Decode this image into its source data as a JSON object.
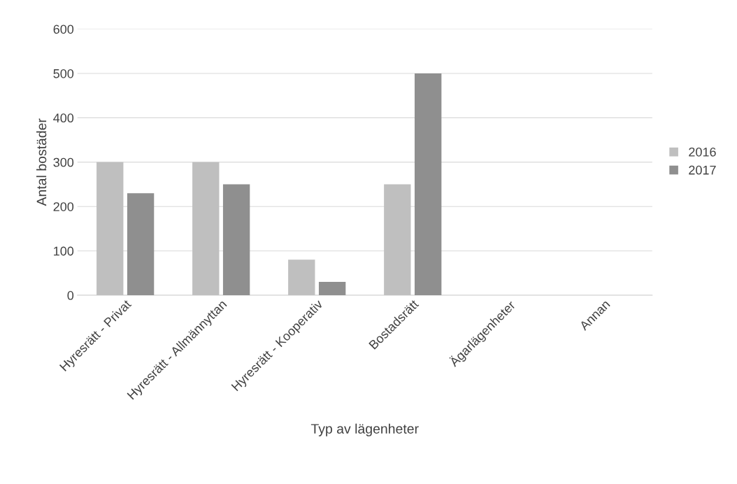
{
  "chart_data": {
    "type": "bar",
    "xlabel": "Typ av lägenheter",
    "ylabel": "Antal bostäder",
    "categories": [
      "Hyresrätt - Privat",
      "Hyresrätt - Allmännyttan",
      "Hyresrätt - Kooperativ",
      "Bostadsrätt",
      "Ägarlägenheter",
      "Annan"
    ],
    "series": [
      {
        "name": "2016",
        "color": "#bfbfbf",
        "values": [
          300,
          300,
          80,
          250,
          null,
          null
        ]
      },
      {
        "name": "2017",
        "color": "#8f8f8f",
        "values": [
          230,
          250,
          30,
          500,
          null,
          null
        ]
      }
    ],
    "ylim": [
      0,
      600
    ],
    "yticks": [
      0,
      100,
      200,
      300,
      400,
      500,
      600
    ],
    "grid": "y",
    "legend": "right"
  }
}
